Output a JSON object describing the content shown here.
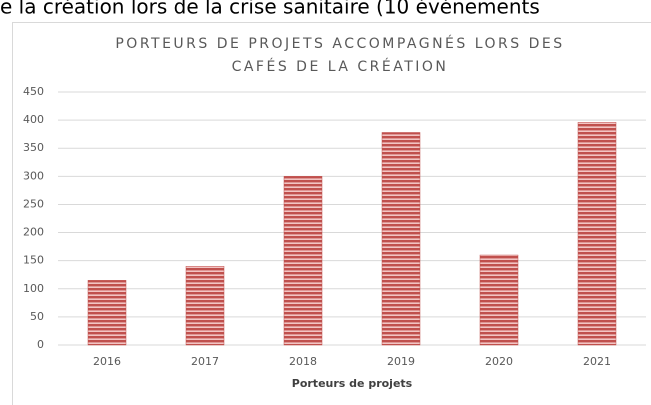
{
  "caption": "e la création lors de la crise sanitaire (10 événements",
  "chart_data": {
    "type": "bar",
    "title": [
      "PORTEURS DE PROJETS ACCOMPAGNÉS LORS DES",
      "CAFÉS DE LA CRÉATION"
    ],
    "x_label": "Porteurs de projets",
    "categories": [
      "2016",
      "2017",
      "2018",
      "2019",
      "2020",
      "2021"
    ],
    "values": [
      115,
      140,
      300,
      378,
      160,
      396
    ],
    "color": "#c0504d",
    "ylim": [
      0,
      450
    ],
    "yticks": [
      0,
      50,
      100,
      150,
      200,
      250,
      300,
      350,
      400,
      450
    ],
    "grid": true
  }
}
